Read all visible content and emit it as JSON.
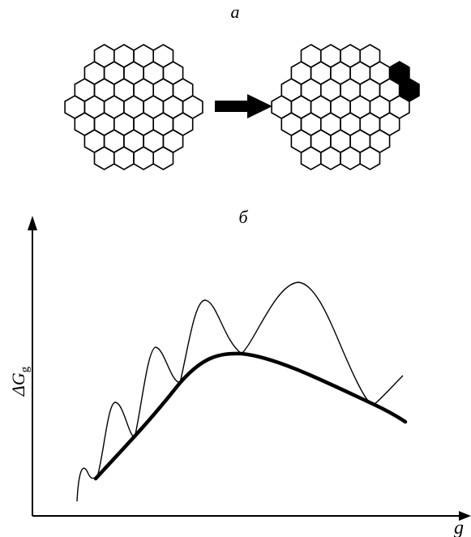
{
  "panels": [
    {
      "label": "а"
    },
    {
      "label": "б",
      "y_axis_label": "ΔG",
      "y_axis_subscript": "g",
      "x_axis_label": "g"
    }
  ]
}
